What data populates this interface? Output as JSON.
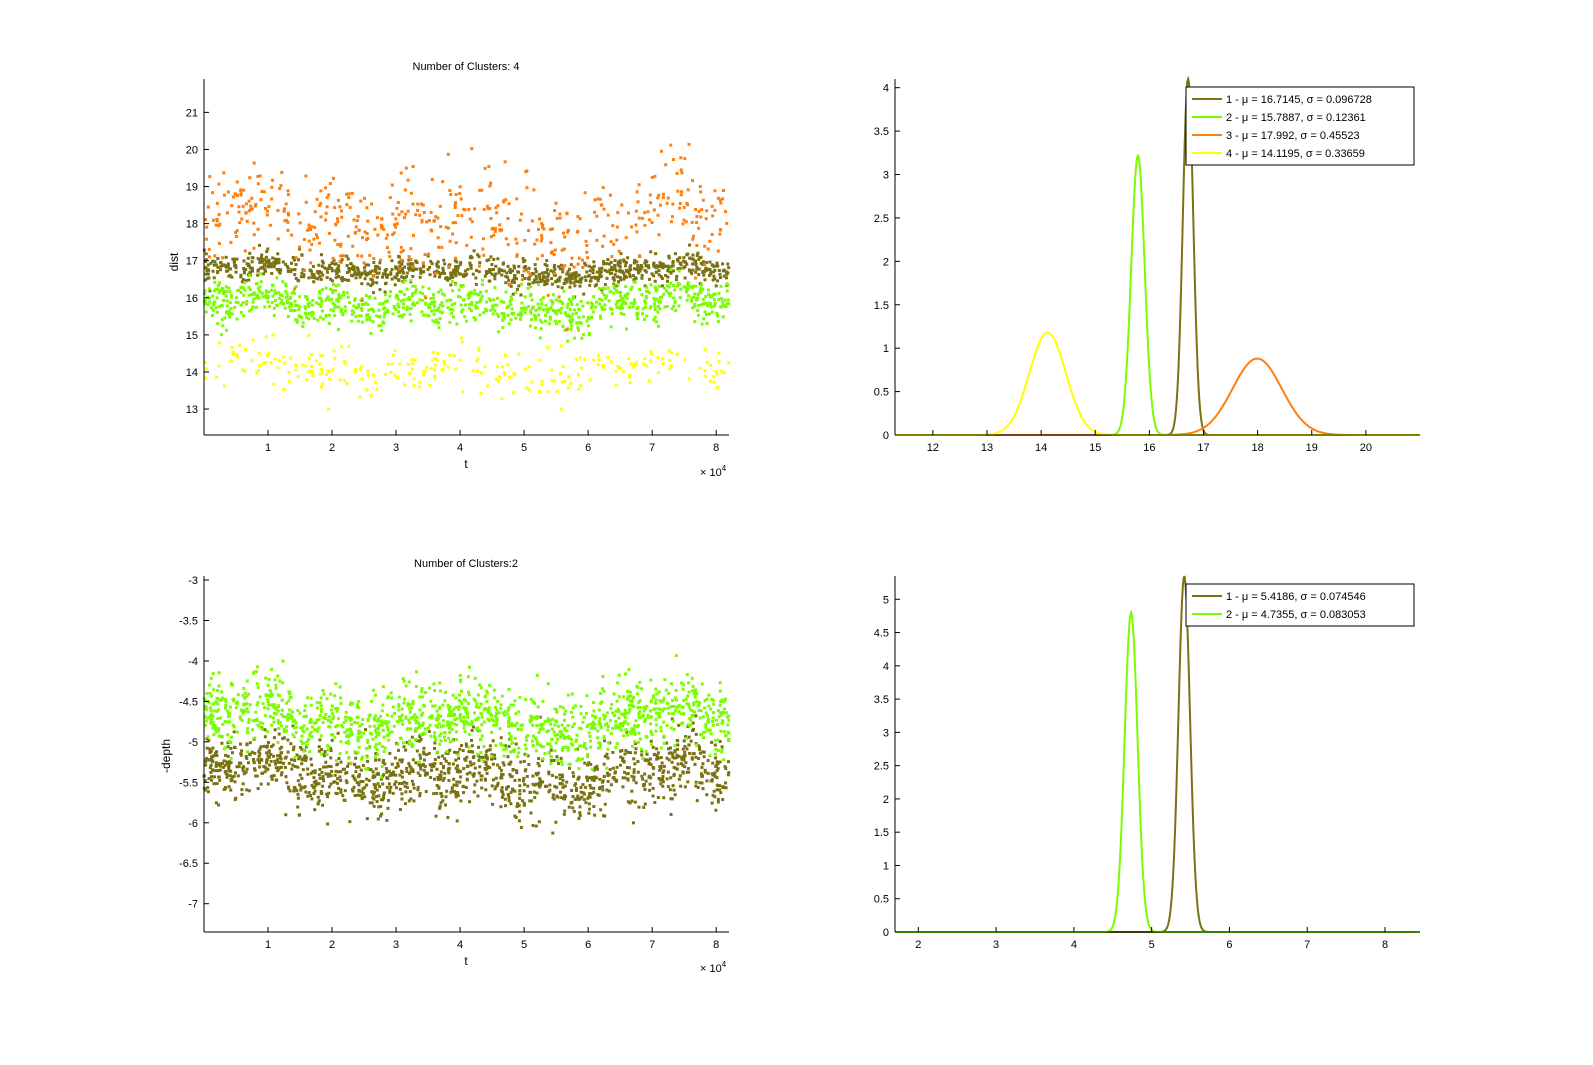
{
  "colors": {
    "olive": "#7a7210",
    "green": "#7cfc00",
    "orange": "#ff7f0e",
    "yellow": "#ffff00",
    "axis": "#000000",
    "background": "#ffffff"
  },
  "chart_data": [
    {
      "type": "scatter",
      "title": "Number of Clusters: 4",
      "xlabel": "t",
      "ylabel": "dist",
      "x_multiplier": "× 10",
      "x_multiplier_exp": "4",
      "xlim": [
        0,
        82000
      ],
      "ylim": [
        12.3,
        21.9
      ],
      "xticks": [
        10000,
        20000,
        30000,
        40000,
        50000,
        60000,
        70000,
        80000
      ],
      "xtick_labels": [
        "1",
        "2",
        "3",
        "4",
        "5",
        "6",
        "7",
        "8"
      ],
      "yticks": [
        13,
        14,
        15,
        16,
        17,
        18,
        19,
        20,
        21
      ],
      "ytick_labels": [
        "13",
        "14",
        "15",
        "16",
        "17",
        "18",
        "19",
        "20",
        "21"
      ],
      "grid": false,
      "series": [
        {
          "color": "#7a7210",
          "center": 16.71,
          "spread": 0.3,
          "weight": 0.35
        },
        {
          "color": "#7cfc00",
          "center": 15.79,
          "spread": 0.45,
          "weight": 0.35
        },
        {
          "color": "#ff7f0e",
          "center": 18.0,
          "spread": 1.1,
          "weight": 0.2
        },
        {
          "color": "#ffff00",
          "center": 14.1,
          "spread": 0.55,
          "weight": 0.1
        }
      ]
    },
    {
      "type": "line",
      "title": "",
      "xlim": [
        11.3,
        21.0
      ],
      "ylim": [
        0,
        4.1
      ],
      "xticks": [
        12,
        13,
        14,
        15,
        16,
        17,
        18,
        19,
        20
      ],
      "xtick_labels": [
        "12",
        "13",
        "14",
        "15",
        "16",
        "17",
        "18",
        "19",
        "20"
      ],
      "yticks": [
        0,
        0.5,
        1,
        1.5,
        2,
        2.5,
        3,
        3.5,
        4
      ],
      "ytick_labels": [
        "0",
        "0.5",
        "1",
        "1.5",
        "2",
        "2.5",
        "3",
        "3.5",
        "4"
      ],
      "grid": false,
      "legend_position": "top-right",
      "series": [
        {
          "name": "1 - μ = 16.7145, σ = 0.096728",
          "mu": 16.7145,
          "sigma": 0.096728,
          "amp": 4.12,
          "color": "#7a7210"
        },
        {
          "name": "2 - μ = 15.7887, σ = 0.12361",
          "mu": 15.7887,
          "sigma": 0.12361,
          "amp": 3.22,
          "color": "#7cfc00"
        },
        {
          "name": "3 - μ = 17.992, σ = 0.45523",
          "mu": 17.992,
          "sigma": 0.45523,
          "amp": 0.88,
          "color": "#ff7f0e"
        },
        {
          "name": "4 - μ = 14.1195, σ = 0.33659",
          "mu": 14.1195,
          "sigma": 0.33659,
          "amp": 1.18,
          "color": "#ffff00"
        }
      ]
    },
    {
      "type": "scatter",
      "title": "Number of Clusters:2",
      "xlabel": "t",
      "ylabel": "-depth",
      "x_multiplier": "× 10",
      "x_multiplier_exp": "4",
      "xlim": [
        0,
        82000
      ],
      "ylim": [
        -7.35,
        -2.95
      ],
      "xticks": [
        10000,
        20000,
        30000,
        40000,
        50000,
        60000,
        70000,
        80000
      ],
      "xtick_labels": [
        "1",
        "2",
        "3",
        "4",
        "5",
        "6",
        "7",
        "8"
      ],
      "yticks": [
        -7,
        -6.5,
        -6,
        -5.5,
        -5,
        -4.5,
        -4,
        -3.5,
        -3
      ],
      "ytick_labels": [
        "-7",
        "-6.5",
        "-6",
        "-5.5",
        "-5",
        "-4.5",
        "-4",
        "-3.5",
        "-3"
      ],
      "grid": false,
      "series": [
        {
          "color": "#7a7210",
          "center": -5.42,
          "spread": 0.35,
          "weight": 0.5
        },
        {
          "color": "#7cfc00",
          "center": -4.74,
          "spread": 0.35,
          "weight": 0.5
        }
      ]
    },
    {
      "type": "line",
      "title": "",
      "xlim": [
        1.7,
        8.45
      ],
      "ylim": [
        0,
        5.35
      ],
      "xticks": [
        2,
        3,
        4,
        5,
        6,
        7,
        8
      ],
      "xtick_labels": [
        "2",
        "3",
        "4",
        "5",
        "6",
        "7",
        "8"
      ],
      "yticks": [
        0,
        0.5,
        1,
        1.5,
        2,
        2.5,
        3,
        3.5,
        4,
        4.5,
        5
      ],
      "ytick_labels": [
        "0",
        "0.5",
        "1",
        "1.5",
        "2",
        "2.5",
        "3",
        "3.5",
        "4",
        "4.5",
        "5"
      ],
      "grid": false,
      "legend_position": "top-right",
      "series": [
        {
          "name": "1 - μ = 5.4186, σ = 0.074546",
          "mu": 5.4186,
          "sigma": 0.074546,
          "amp": 5.35,
          "color": "#7a7210"
        },
        {
          "name": "2 - μ = 4.7355, σ = 0.083053",
          "mu": 4.7355,
          "sigma": 0.083053,
          "amp": 4.8,
          "color": "#7cfc00"
        }
      ]
    }
  ]
}
